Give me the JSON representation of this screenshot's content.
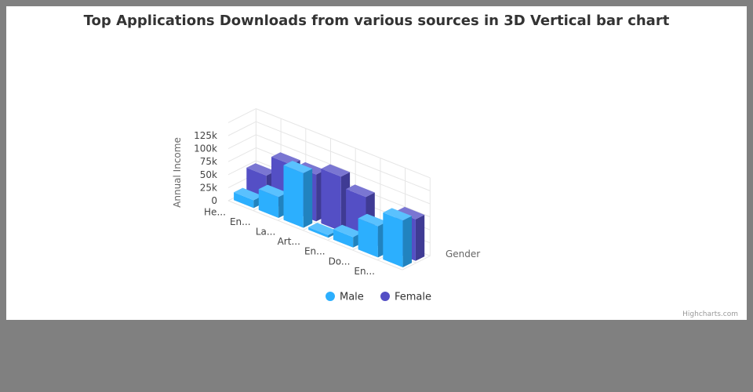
{
  "credits": "Highcharts.com",
  "colors": {
    "male": "#2caffe",
    "female": "#544fc5",
    "grid": "#e6e6e6"
  },
  "legend": {
    "placement": "bottom-center",
    "items": [
      "Male",
      "Female"
    ]
  },
  "chart_data": {
    "type": "bar",
    "style": "3d",
    "title": "Top Applications Downloads from various sources in 3D Vertical bar chart",
    "ylabel": "Annual Income",
    "zlabel": "Gender",
    "xlabel": "",
    "ylim": [
      0,
      125000
    ],
    "yticks": [
      "0",
      "25k",
      "50k",
      "75k",
      "100k",
      "125k"
    ],
    "categories": [
      "He...",
      "En...",
      "La...",
      "Art...",
      "En...",
      "Do...",
      "En..."
    ],
    "series": [
      {
        "name": "Male",
        "color": "#2caffe",
        "values": [
          15000,
          40000,
          105000,
          5000,
          20000,
          60000,
          90000
        ]
      },
      {
        "name": "Female",
        "color": "#544fc5",
        "values": [
          50000,
          90000,
          90000,
          105000,
          85000,
          25000,
          80000
        ]
      }
    ],
    "grid": true
  }
}
